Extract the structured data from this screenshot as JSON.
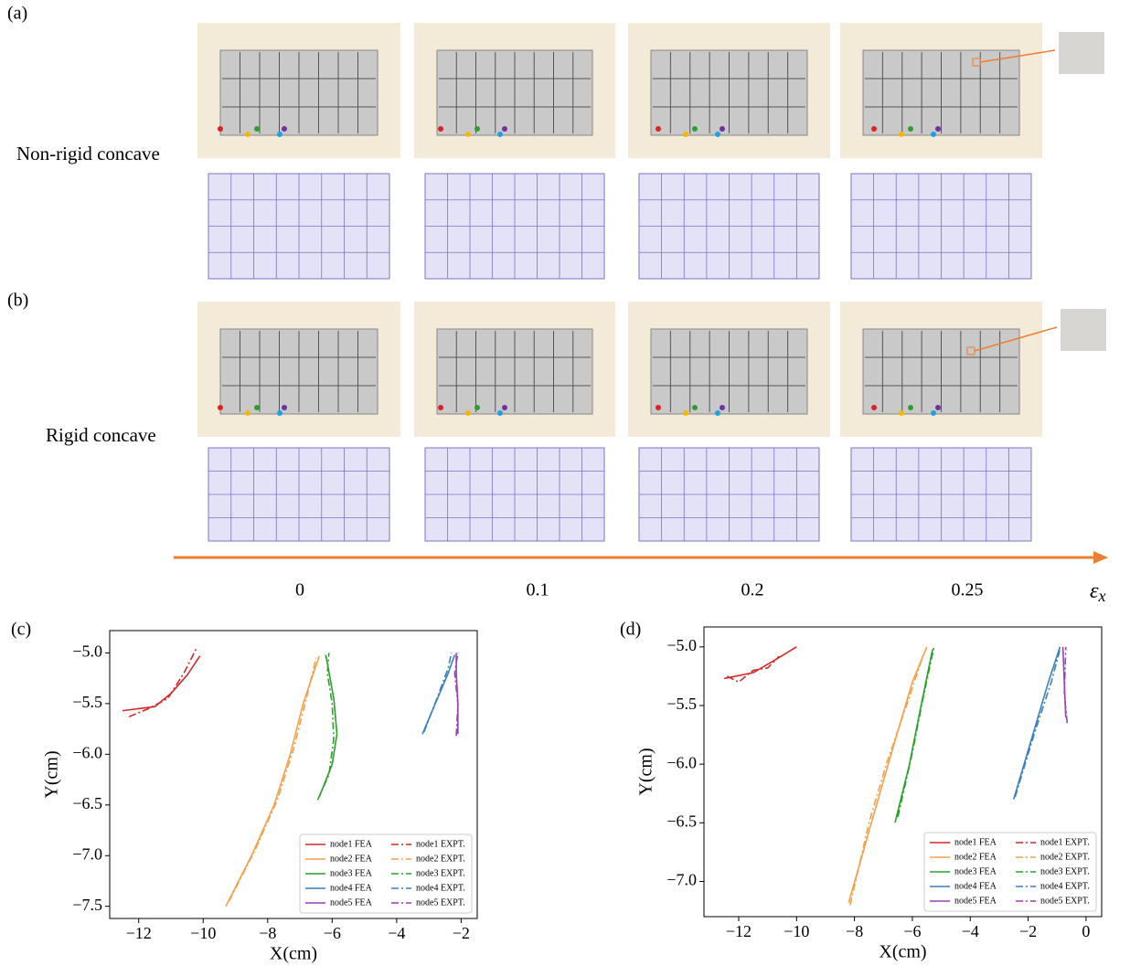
{
  "figure": {
    "panels": [
      {
        "label": "(a)",
        "row_label": "Non-rigid concave"
      },
      {
        "label": "(b)",
        "row_label": "Rigid concave"
      }
    ],
    "strain_axis": {
      "labels": [
        "0",
        "0.1",
        "0.2",
        "0.25"
      ],
      "symbol": "ε",
      "subscript": "x"
    }
  },
  "chart_data": [
    {
      "type": "line",
      "panel_label": "(c)",
      "xlabel": "X(cm)",
      "ylabel": "Y(cm)",
      "legend": "lower right",
      "xlim": [
        -12.9,
        -1.5
      ],
      "ylim": [
        -7.62,
        -4.78
      ],
      "xticks": [
        {
          "value": -12,
          "label": "−12"
        },
        {
          "value": -10,
          "label": "−10"
        },
        {
          "value": -8,
          "label": "−8"
        },
        {
          "value": -6,
          "label": "−6"
        },
        {
          "value": -4,
          "label": "−4"
        },
        {
          "value": -2,
          "label": "−2"
        }
      ],
      "yticks": [
        {
          "value": -7.5,
          "label": "−7.5"
        },
        {
          "value": -7,
          "label": "−7.0"
        },
        {
          "value": -6.5,
          "label": "−6.5"
        },
        {
          "value": -6,
          "label": "−6.0"
        },
        {
          "value": -5.5,
          "label": "−5.5"
        },
        {
          "value": -5,
          "label": "−5.0"
        }
      ],
      "series": [
        {
          "name": "node1 FEA",
          "color": "#d62728",
          "dash": "solid",
          "x": [
            -12.5,
            -11.5,
            -11,
            -10.5,
            -10.1
          ],
          "values": [
            -5.57,
            -5.53,
            -5.4,
            -5.22,
            -5.03
          ]
        },
        {
          "name": "node2 FEA",
          "color": "#f5a04a",
          "dash": "solid",
          "x": [
            -9.3,
            -8.5,
            -7.8,
            -7.3,
            -6.9,
            -6.4
          ],
          "values": [
            -7.5,
            -7.0,
            -6.5,
            -6.0,
            -5.5,
            -5.03
          ]
        },
        {
          "name": "node3 FEA",
          "color": "#2ca02c",
          "dash": "solid",
          "x": [
            -6.4,
            -6.0,
            -5.85,
            -5.95,
            -6.15,
            -6.2
          ],
          "values": [
            -6.42,
            -6.1,
            -5.8,
            -5.45,
            -5.1,
            -5.02
          ]
        },
        {
          "name": "node4 FEA",
          "color": "#3a7fc0",
          "dash": "solid",
          "x": [
            -3.2,
            -2.8,
            -2.4,
            -2.2
          ],
          "values": [
            -5.8,
            -5.5,
            -5.2,
            -5.02
          ]
        },
        {
          "name": "node5 FEA",
          "color": "#9b3fb5",
          "dash": "solid",
          "x": [
            -2.1,
            -2.1,
            -2.15,
            -2.15
          ],
          "values": [
            -5.8,
            -5.5,
            -5.2,
            -5.0
          ]
        },
        {
          "name": "node1 EXPT.",
          "color": "#d62728",
          "dash": "dashdot",
          "x": [
            -12.3,
            -11.7,
            -11.1,
            -10.6,
            -10.2
          ],
          "values": [
            -5.63,
            -5.55,
            -5.45,
            -5.2,
            -4.95
          ]
        },
        {
          "name": "node2 EXPT.",
          "color": "#f5a04a",
          "dash": "dashdot",
          "x": [
            -9.2,
            -8.4,
            -7.7,
            -7.2,
            -6.8,
            -6.5
          ],
          "values": [
            -7.45,
            -6.95,
            -6.45,
            -5.95,
            -5.45,
            -5.05
          ]
        },
        {
          "name": "node3 EXPT.",
          "color": "#2ca02c",
          "dash": "dashdot",
          "x": [
            -6.45,
            -6.1,
            -5.95,
            -6.0,
            -6.15,
            -6.1
          ],
          "values": [
            -6.45,
            -6.2,
            -5.85,
            -5.5,
            -5.2,
            -5.0
          ]
        },
        {
          "name": "node4 EXPT.",
          "color": "#3a7fc0",
          "dash": "dashdot",
          "x": [
            -3.15,
            -2.75,
            -2.4,
            -2.3
          ],
          "values": [
            -5.78,
            -5.45,
            -5.15,
            -5.0
          ]
        },
        {
          "name": "node5 EXPT.",
          "color": "#9b3fb5",
          "dash": "dashdot",
          "x": [
            -2.15,
            -2.1,
            -2.2,
            -2.1
          ],
          "values": [
            -5.82,
            -5.5,
            -5.2,
            -5.0
          ]
        }
      ]
    },
    {
      "type": "line",
      "panel_label": "(d)",
      "xlabel": "X(cm)",
      "ylabel": "Y(cm)",
      "legend": "lower right",
      "xlim": [
        -13.2,
        0.54
      ],
      "ylim": [
        -7.3,
        -4.83
      ],
      "xticks": [
        {
          "value": -12,
          "label": "−12"
        },
        {
          "value": -10,
          "label": "−10"
        },
        {
          "value": -8,
          "label": "−8"
        },
        {
          "value": -6,
          "label": "−6"
        },
        {
          "value": -4,
          "label": "−4"
        },
        {
          "value": -2,
          "label": "−2"
        },
        0
      ],
      "yticks": [
        {
          "value": -7,
          "label": "−7.0"
        },
        {
          "value": -6.5,
          "label": "−6.5"
        },
        {
          "value": -6,
          "label": "−6.0"
        },
        {
          "value": -5.5,
          "label": "−5.5"
        },
        {
          "value": -5,
          "label": "−5.0"
        }
      ],
      "series": [
        {
          "name": "node1 FEA",
          "color": "#d62728",
          "dash": "solid",
          "x": [
            -12.5,
            -11.5,
            -10.8,
            -10
          ],
          "values": [
            -5.27,
            -5.22,
            -5.12,
            -5.0
          ]
        },
        {
          "name": "node2 FEA",
          "color": "#f5a04a",
          "dash": "solid",
          "x": [
            -8.2,
            -7.3,
            -6.6,
            -6,
            -5.5
          ],
          "values": [
            -7.18,
            -6.4,
            -5.8,
            -5.3,
            -5.0
          ]
        },
        {
          "name": "node3 FEA",
          "color": "#2ca02c",
          "dash": "solid",
          "x": [
            -6.6,
            -6.1,
            -5.7,
            -5.3
          ],
          "values": [
            -6.5,
            -6.0,
            -5.5,
            -5.02
          ]
        },
        {
          "name": "node4 FEA",
          "color": "#3a7fc0",
          "dash": "solid",
          "x": [
            -2.5,
            -1.9,
            -1.3,
            -0.9
          ],
          "values": [
            -6.3,
            -5.8,
            -5.3,
            -5.0
          ]
        },
        {
          "name": "node5 FEA",
          "color": "#9b3fb5",
          "dash": "solid",
          "x": [
            -0.7,
            -0.75,
            -0.8
          ],
          "values": [
            -5.6,
            -5.3,
            -5.0
          ]
        },
        {
          "name": "node1 EXPT.",
          "color": "#d62728",
          "dash": "dashdot",
          "x": [
            -12.4,
            -12,
            -11.5,
            -11,
            -10.6
          ],
          "values": [
            -5.25,
            -5.3,
            -5.2,
            -5.18,
            -5.08
          ]
        },
        {
          "name": "node2 EXPT.",
          "color": "#f5a04a",
          "dash": "dashdot",
          "x": [
            -8.15,
            -7.5,
            -6.9,
            -6.2,
            -5.6
          ],
          "values": [
            -7.2,
            -6.5,
            -6.0,
            -5.5,
            -5.05
          ]
        },
        {
          "name": "node3 EXPT.",
          "color": "#2ca02c",
          "dash": "dashdot",
          "x": [
            -6.5,
            -6.0,
            -5.6,
            -5.25
          ],
          "values": [
            -6.45,
            -5.9,
            -5.4,
            -5.0
          ]
        },
        {
          "name": "node4 EXPT.",
          "color": "#3a7fc0",
          "dash": "dashdot",
          "x": [
            -2.45,
            -1.8,
            -1.2,
            -0.9
          ],
          "values": [
            -6.28,
            -5.75,
            -5.3,
            -5.02
          ]
        },
        {
          "name": "node5 EXPT.",
          "color": "#9b3fb5",
          "dash": "dashdot",
          "x": [
            -0.65,
            -0.75,
            -0.7
          ],
          "values": [
            -5.65,
            -5.4,
            -5.0
          ]
        }
      ]
    }
  ]
}
